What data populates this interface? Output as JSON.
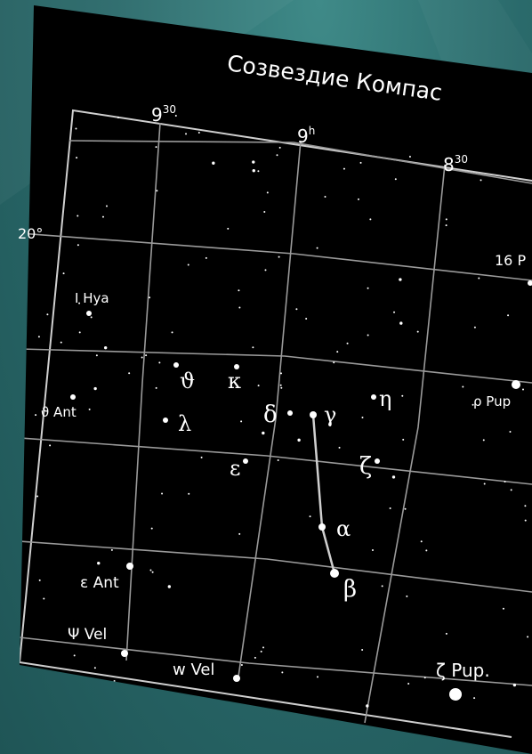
{
  "title": "Созвездие Компас",
  "ra_labels": [
    {
      "id": "ra-9h30",
      "text": "9",
      "sup": "30"
    },
    {
      "id": "ra-9h",
      "text": "9",
      "sup": "h"
    },
    {
      "id": "ra-8h30",
      "text": "8",
      "sup": "30"
    }
  ],
  "dec_label": "20°",
  "star_labels": {
    "i_hya": "I Hya",
    "theta_ant": "ϑ Ant",
    "epsilon_ant": "ε Ant",
    "psi_vel": "Ψ Vel",
    "w_vel": "w Vel",
    "zeta_pup": "ζ Pup.",
    "rho_pup": "ρ Pup",
    "pup16": "16 P",
    "theta": "ϑ",
    "kappa": "κ",
    "lambda": "λ",
    "delta": "δ",
    "gamma": "γ",
    "eta": "η",
    "epsilon": "ε",
    "zeta": "ζ",
    "alpha": "α",
    "beta": "β"
  },
  "colors": {
    "map_background": "#000000",
    "grid": "#9a9a9a",
    "border": "#cfcfcf",
    "text": "#ffffff",
    "page_background": "#2a6a6b"
  }
}
